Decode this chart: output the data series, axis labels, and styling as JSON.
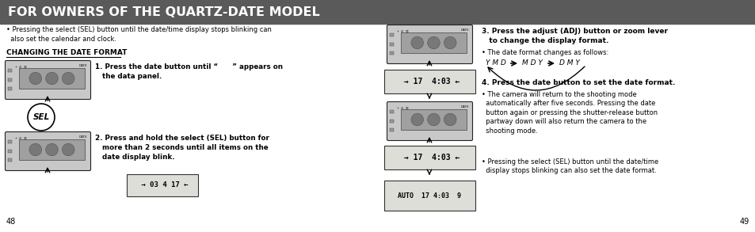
{
  "title": "FOR OWNERS OF THE QUARTZ-DATE MODEL",
  "title_bg": "#5a5a5a",
  "title_color": "#ffffff",
  "body_bg": "#ffffff",
  "page_left": "48",
  "page_right": "49",
  "intro_bullet": "Pressing the select (SEL) button until the date/time display stops blinking can\n  also set the calendar and clock.",
  "section_title": "CHANGING THE DATE FORMAT",
  "step1_bold": "1. Press the date button until “      ” appears on\n   the data panel.",
  "step2_bold": "2. Press and hold the select (SEL) button for\n   more than 2 seconds until all items on the\n   date display blink.",
  "step3_bold": "3. Press the adjust (ADJ) button or zoom lever\n   to change the display format.",
  "step3_bullet": "The date format changes as follows:",
  "step4_bold": "4. Press the date button to set the date format.",
  "step4_bullet1": "The camera will return to the shooting mode\n  automatically after five seconds. Pressing the date\n  button again or pressing the shutter-release button\n  partway down will also return the camera to the\n  shooting mode.",
  "step4_bullet2": "Pressing the select (SEL) button until the date/time\n  display stops blinking can also set the date format.",
  "ymd_label": "Y M D",
  "mdy_label": "M D Y",
  "dmy_label": "D M Y"
}
